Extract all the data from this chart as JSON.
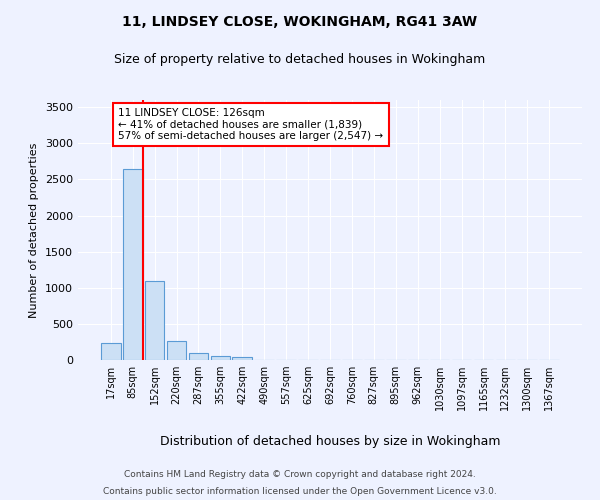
{
  "title1": "11, LINDSEY CLOSE, WOKINGHAM, RG41 3AW",
  "title2": "Size of property relative to detached houses in Wokingham",
  "xlabel": "Distribution of detached houses by size in Wokingham",
  "ylabel": "Number of detached properties",
  "bin_labels": [
    "17sqm",
    "85sqm",
    "152sqm",
    "220sqm",
    "287sqm",
    "355sqm",
    "422sqm",
    "490sqm",
    "557sqm",
    "625sqm",
    "692sqm",
    "760sqm",
    "827sqm",
    "895sqm",
    "962sqm",
    "1030sqm",
    "1097sqm",
    "1165sqm",
    "1232sqm",
    "1300sqm",
    "1367sqm"
  ],
  "bin_values": [
    230,
    2650,
    1100,
    270,
    100,
    60,
    40,
    0,
    0,
    0,
    0,
    0,
    0,
    0,
    0,
    0,
    0,
    0,
    0,
    0,
    0
  ],
  "bar_color": "#cce0f5",
  "bar_edge_color": "#5b9bd5",
  "vline_x": 1.45,
  "property_label": "11 LINDSEY CLOSE: 126sqm",
  "annotation_line1": "← 41% of detached houses are smaller (1,839)",
  "annotation_line2": "57% of semi-detached houses are larger (2,547) →",
  "annotation_box_color": "white",
  "annotation_box_edge": "red",
  "vline_color": "red",
  "ylim": [
    0,
    3600
  ],
  "yticks": [
    0,
    500,
    1000,
    1500,
    2000,
    2500,
    3000,
    3500
  ],
  "footer1": "Contains HM Land Registry data © Crown copyright and database right 2024.",
  "footer2": "Contains public sector information licensed under the Open Government Licence v3.0.",
  "background_color": "#eef2ff",
  "axes_background": "#eef2ff"
}
